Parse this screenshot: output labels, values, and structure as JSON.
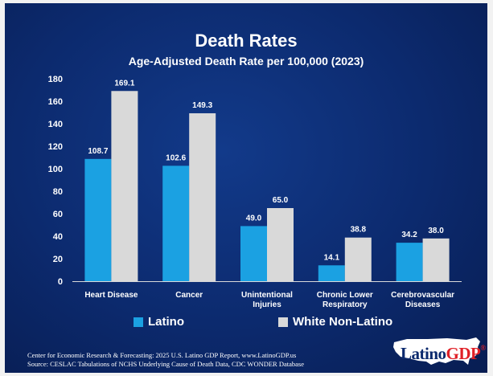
{
  "chart_data": {
    "type": "bar",
    "title": "Death Rates",
    "subtitle": "Age-Adjusted Death Rate per 100,000 (2023)",
    "categories": [
      [
        "Heart Disease"
      ],
      [
        "Cancer"
      ],
      [
        "Unintentional",
        "Injuries"
      ],
      [
        "Chronic Lower",
        "Respiratory"
      ],
      [
        "Cerebrovascular",
        "Diseases"
      ]
    ],
    "series": [
      {
        "name": "Latino",
        "color": "#1ba1e2",
        "values": [
          108.7,
          102.6,
          49.0,
          14.1,
          34.2
        ],
        "labels": [
          "108.7",
          "102.6",
          "49.0",
          "14.1",
          "34.2"
        ]
      },
      {
        "name": "White Non-Latino",
        "color": "#d9d9d9",
        "values": [
          169.1,
          149.3,
          65.0,
          38.8,
          38.0
        ],
        "labels": [
          "169.1",
          "149.3",
          "65.0",
          "38.8",
          "38.0"
        ]
      }
    ],
    "ylim": [
      0,
      180
    ],
    "yticks": [
      0,
      20,
      40,
      60,
      80,
      100,
      120,
      140,
      160,
      180
    ],
    "grid": false,
    "legend": "bottom"
  },
  "source": {
    "line1": "Center for Economic Research & Forecasting: 2025 U.S. Latino GDP Report, www.LatinoGDP.us",
    "line2": "Source: CESLAC Tabulations of NCHS Underlying Cause of Death Data, CDC WONDER Database"
  },
  "logo": {
    "part1": "Latino",
    "part2": "GDP",
    "mark": "®"
  }
}
